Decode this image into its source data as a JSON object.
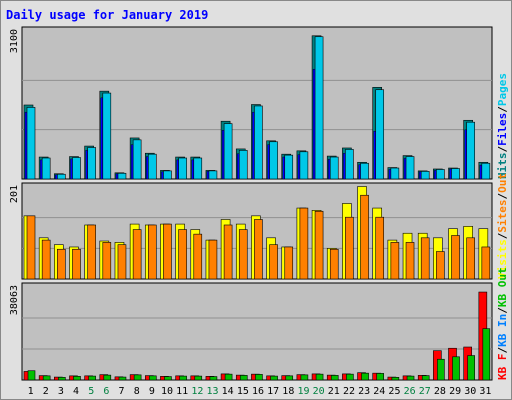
{
  "chart_data": {
    "type": "bar",
    "title": "Daily usage for January 2019",
    "days": [
      "1",
      "2",
      "3",
      "4",
      "5",
      "6",
      "7",
      "8",
      "9",
      "10",
      "11",
      "12",
      "13",
      "14",
      "15",
      "16",
      "17",
      "18",
      "19",
      "20",
      "21",
      "22",
      "23",
      "24",
      "25",
      "26",
      "27",
      "28",
      "29",
      "30",
      "31"
    ],
    "weekend_days": [
      "5",
      "6",
      "12",
      "13",
      "19",
      "20",
      "26",
      "27"
    ],
    "colors": {
      "background": "#e0e0e0",
      "plot_bg": "#c0c0c0",
      "grid": "#909090",
      "pages": "#00c8e8",
      "files": "#0000ff",
      "hits": "#008080",
      "visits": "#ffff00",
      "sites": "#ff8000",
      "kbin": "#0080ff",
      "kbout": "#00c000",
      "kbf": "#ff0000",
      "weekday_label": "#000000",
      "weekend_label": "#008040"
    },
    "panels": [
      {
        "max_label": "3100",
        "max": 3100,
        "legend": [
          {
            "text": "Hits",
            "color": "#008080"
          },
          {
            "text": "/",
            "color": "#000000"
          },
          {
            "text": "Files",
            "color": "#0000ff"
          },
          {
            "text": "/",
            "color": "#000000"
          },
          {
            "text": "Pages",
            "color": "#00c8e8"
          }
        ],
        "series": [
          {
            "name": "Hits",
            "color": "#008080",
            "values": [
              1550,
              460,
              110,
              470,
              690,
              1840,
              130,
              860,
              540,
              180,
              460,
              460,
              180,
              1210,
              630,
              1560,
              800,
              520,
              590,
              3000,
              480,
              650,
              350,
              1920,
              240,
              490,
              170,
              210,
              230,
              1230,
              350
            ]
          },
          {
            "name": "Files",
            "color": "#0000ff",
            "values": [
              1400,
              400,
              90,
              420,
              600,
              1700,
              110,
              720,
              470,
              150,
              400,
              400,
              160,
              1020,
              530,
              1400,
              720,
              460,
              510,
              2300,
              410,
              540,
              300,
              1000,
              200,
              430,
              150,
              180,
              210,
              1030,
              290
            ]
          },
          {
            "name": "Pages",
            "color": "#00c8e8",
            "values": [
              1500,
              440,
              100,
              450,
              660,
              1800,
              120,
              820,
              520,
              170,
              440,
              440,
              170,
              1160,
              600,
              1530,
              780,
              500,
              570,
              2980,
              460,
              620,
              330,
              1870,
              230,
              470,
              160,
              200,
              220,
              1190,
              330
            ]
          }
        ]
      },
      {
        "max_label": "201",
        "max": 201,
        "legend": [
          {
            "text": "Visits",
            "color": "#ffff00"
          },
          {
            "text": "/",
            "color": "#000000"
          },
          {
            "text": "Sites",
            "color": "#ff8000"
          },
          {
            "text": "/",
            "color": "#000000"
          },
          {
            "text": "Out",
            "color": "#ff8000"
          }
        ],
        "series": [
          {
            "name": "Visits",
            "color": "#ffff00",
            "values": [
              138,
              90,
              75,
              70,
              118,
              83,
              80,
              120,
              118,
              120,
              120,
              108,
              85,
              130,
              120,
              138,
              90,
              70,
              155,
              150,
              67,
              165,
              202,
              155,
              85,
              100,
              100,
              90,
              110,
              115,
              110
            ]
          },
          {
            "name": "Sites",
            "color": "#ff8000",
            "values": [
              138,
              85,
              65,
              65,
              118,
              80,
              75,
              108,
              118,
              120,
              108,
              98,
              85,
              118,
              108,
              130,
              75,
              70,
              155,
              148,
              65,
              135,
              183,
              135,
              80,
              80,
              90,
              60,
              95,
              90,
              70
            ]
          }
        ]
      },
      {
        "max_label": "38063",
        "max": 38063,
        "legend": [
          {
            "text": "KB F",
            "color": "#ff0000"
          },
          {
            "text": "/",
            "color": "#000000"
          },
          {
            "text": "KB In",
            "color": "#0080ff"
          },
          {
            "text": "/",
            "color": "#000000"
          },
          {
            "text": "KB Out",
            "color": "#00c000"
          }
        ],
        "series": [
          {
            "name": "KB F",
            "color": "#ff0000",
            "values": [
              3500,
              1800,
              1200,
              1700,
              1700,
              2200,
              1300,
              2200,
              1800,
              1500,
              1700,
              1700,
              1500,
              2500,
              2000,
              2400,
              1700,
              1800,
              2200,
              2500,
              2000,
              2500,
              3000,
              2800,
              1200,
              1700,
              1900,
              12000,
              13000,
              13500,
              36000
            ]
          },
          {
            "name": "KB Out",
            "color": "#00c000",
            "values": [
              3800,
              1700,
              1100,
              1500,
              1600,
              2000,
              1200,
              2100,
              1700,
              1400,
              1600,
              1600,
              1400,
              2400,
              1900,
              2300,
              1600,
              1700,
              2100,
              2400,
              1900,
              2400,
              2800,
              2700,
              1100,
              1600,
              1800,
              8500,
              9500,
              10000,
              21000
            ]
          }
        ]
      }
    ]
  }
}
